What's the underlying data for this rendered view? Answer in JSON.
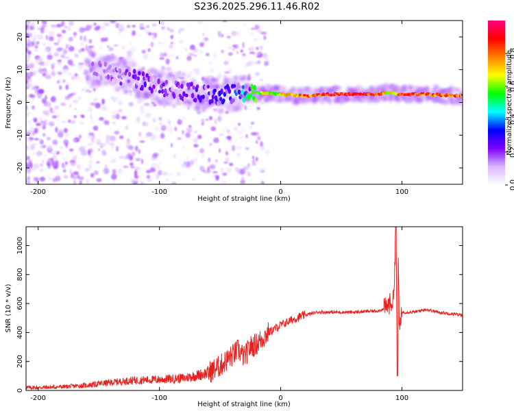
{
  "title": "S236.2025.296.11.46.R02",
  "chart_data": [
    {
      "type": "heatmap",
      "name": "spectrogram",
      "xlabel": "Height of straight line (km)",
      "ylabel": "Frequency (Hz)",
      "xlim": [
        -210,
        150
      ],
      "ylim": [
        -25,
        25
      ],
      "xticks": [
        -200,
        -100,
        0,
        100
      ],
      "xtick_labels": [
        "-200",
        "-100",
        "0",
        "100"
      ],
      "yticks": [
        -20,
        -10,
        0,
        10,
        20
      ],
      "ytick_labels": [
        "-20",
        "-10",
        "0",
        "10",
        "20"
      ],
      "colorbar": {
        "label": "Normalized spectral amplitude",
        "range": [
          0,
          1
        ],
        "ticks": [
          0.0,
          0.2,
          0.4,
          0.6,
          0.8
        ],
        "tick_labels": [
          "0.0",
          "0.2",
          "0.4",
          "0.6",
          "0.8"
        ],
        "colors": [
          "#ffffff",
          "#d9b8ff",
          "#7f00ff",
          "#0000ff",
          "#00ffff",
          "#00ff00",
          "#ffff00",
          "#ff8000",
          "#ff0000",
          "#ff0080"
        ]
      },
      "ridge": {
        "heights_km": [
          -150,
          -130,
          -110,
          -90,
          -70,
          -50,
          -35,
          -20,
          0,
          20,
          40,
          60,
          80,
          90,
          95,
          100,
          120,
          150
        ],
        "frequency_hz": [
          10,
          8,
          6,
          4,
          3,
          2,
          3,
          3,
          2.5,
          2,
          2.5,
          2.5,
          2.5,
          3,
          2.5,
          2.5,
          2.5,
          2
        ],
        "amplitude": [
          0.15,
          0.2,
          0.25,
          0.2,
          0.25,
          0.3,
          0.35,
          0.6,
          0.7,
          0.8,
          0.9,
          0.9,
          0.85,
          0.7,
          0.6,
          0.9,
          0.85,
          0.8
        ]
      }
    },
    {
      "type": "line",
      "name": "snr",
      "xlabel": "Height of straight line (km)",
      "ylabel": "SNR (10 * v/v)",
      "xlim": [
        -210,
        150
      ],
      "ylim": [
        0,
        1130
      ],
      "xticks": [
        -200,
        -100,
        0,
        100
      ],
      "xtick_labels": [
        "-200",
        "-100",
        "0",
        "100"
      ],
      "yticks": [
        0,
        200,
        400,
        600,
        800,
        1000
      ],
      "ytick_labels": [
        "0",
        "200",
        "400",
        "600",
        "800",
        "1000"
      ],
      "color": "#e8201e",
      "series": [
        {
          "name": "SNR",
          "x": [
            -210,
            -200,
            -180,
            -160,
            -140,
            -120,
            -100,
            -80,
            -60,
            -50,
            -40,
            -35,
            -30,
            -25,
            -20,
            -10,
            0,
            10,
            20,
            30,
            40,
            60,
            80,
            85,
            90,
            93,
            95,
            96,
            97,
            98,
            100,
            110,
            120,
            130,
            140,
            150
          ],
          "y": [
            20,
            20,
            25,
            35,
            55,
            70,
            75,
            85,
            120,
            170,
            240,
            280,
            230,
            300,
            320,
            400,
            450,
            490,
            520,
            540,
            540,
            540,
            550,
            560,
            600,
            620,
            1130,
            100,
            900,
            400,
            540,
            540,
            560,
            540,
            530,
            520
          ]
        }
      ]
    }
  ]
}
